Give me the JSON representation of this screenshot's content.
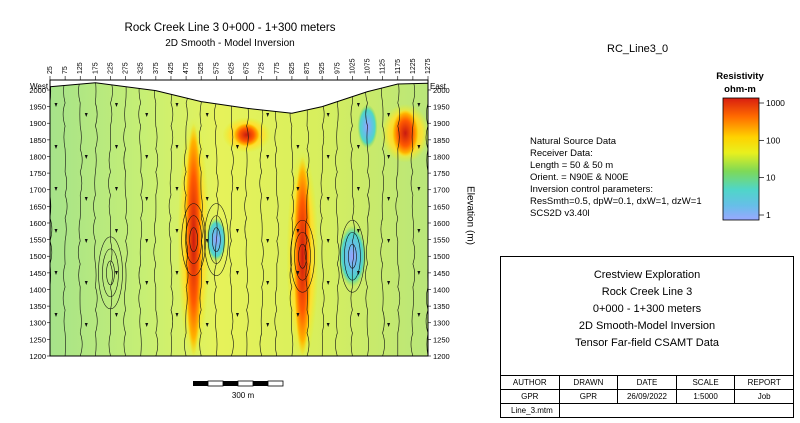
{
  "chart_data": {
    "type": "heatmap",
    "title": "Rock Creek Line 3 0+000 - 1+300 meters",
    "subtitle": "2D Smooth - Model Inversion",
    "xlabel_left": "West",
    "xlabel_right": "East",
    "ylabel": "Elevation (m)",
    "x_ticks": [
      "25",
      "75",
      "125",
      "175",
      "225",
      "275",
      "325",
      "375",
      "425",
      "475",
      "525",
      "575",
      "625",
      "675",
      "725",
      "775",
      "825",
      "875",
      "925",
      "975",
      "1025",
      "1075",
      "1125",
      "1175",
      "1225",
      "1275"
    ],
    "y_ticks": [
      "2000",
      "1950",
      "1900",
      "1850",
      "1800",
      "1750",
      "1700",
      "1650",
      "1600",
      "1550",
      "1500",
      "1450",
      "1400",
      "1350",
      "1300",
      "1250",
      "1200"
    ],
    "ylim": [
      1200,
      2030
    ],
    "xlim": [
      25,
      1275
    ],
    "color_scale": {
      "title": "Resistivity",
      "units": "ohm-m",
      "scale": "log",
      "ticks": [
        "1000",
        "100",
        "10",
        "1"
      ],
      "colors": [
        "#d81e10",
        "#ff6a00",
        "#ffd200",
        "#e8f01e",
        "#7ed957",
        "#4fd6c8",
        "#66bfe8",
        "#9aa8ff"
      ]
    },
    "surface_profile": [
      {
        "x": 25,
        "elev": 2010
      },
      {
        "x": 175,
        "elev": 2022
      },
      {
        "x": 375,
        "elev": 1998
      },
      {
        "x": 525,
        "elev": 1965
      },
      {
        "x": 675,
        "elev": 1945
      },
      {
        "x": 825,
        "elev": 1930
      },
      {
        "x": 925,
        "elev": 1950
      },
      {
        "x": 1075,
        "elev": 1995
      },
      {
        "x": 1175,
        "elev": 2018
      },
      {
        "x": 1275,
        "elev": 2020
      }
    ],
    "high_resistivity_zones": [
      {
        "x": 500,
        "elev_top": 1900,
        "elev_bottom": 1200,
        "ohm_m": 1000
      },
      {
        "x": 860,
        "elev_top": 1800,
        "elev_bottom": 1200,
        "ohm_m": 1000
      },
      {
        "x": 1200,
        "elev_top": 1940,
        "elev_bottom": 1800,
        "ohm_m": 500
      },
      {
        "x": 675,
        "elev_top": 1900,
        "elev_bottom": 1830,
        "ohm_m": 300
      }
    ],
    "low_resistivity_zones": [
      {
        "x": 575,
        "elev": 1550,
        "ohm_m": 8
      },
      {
        "x": 1025,
        "elev": 1500,
        "ohm_m": 3
      },
      {
        "x": 1075,
        "elev": 1890,
        "ohm_m": 10
      }
    ]
  },
  "scale_bar": {
    "label": "300 m"
  },
  "panel": {
    "id": "RC_Line3_0"
  },
  "info": {
    "lines": [
      "Natural Source Data",
      "Receiver Data:",
      "Length = 50 & 50 m",
      "Orient. = N90E & N00E",
      "Inversion control parameters:",
      "ResSmth=0.5, dpW=0.1, dxW=1, dzW=1",
      "SCS2D v3.40l"
    ]
  },
  "title_block": {
    "lines": [
      "Crestview Exploration",
      "Rock Creek Line 3",
      "0+000 - 1+300 meters",
      "2D Smooth-Model Inversion",
      "Tensor Far-field CSAMT Data"
    ],
    "headers": [
      "AUTHOR",
      "DRAWN",
      "DATE",
      "SCALE",
      "REPORT"
    ],
    "values": [
      "GPR",
      "GPR",
      "26/09/2022",
      "1:5000",
      "Job"
    ],
    "file": "Line_3.mtm"
  }
}
